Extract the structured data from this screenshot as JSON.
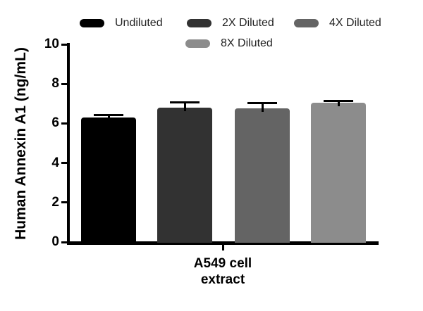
{
  "figure": {
    "background": "#ffffff",
    "text_color": "#000000"
  },
  "chart_data": {
    "type": "bar",
    "title": "",
    "categories": [
      "A549 cell extract"
    ],
    "xlabel_lines": [
      "A549 cell",
      "extract"
    ],
    "ylabel": "Human Annexin A1 (ng/mL)",
    "units": "ng/mL",
    "ylim": [
      0,
      10
    ],
    "yticks": [
      0,
      2,
      4,
      6,
      8,
      10
    ],
    "grid": false,
    "legend_position": "top",
    "error_bars": true,
    "error_color": "#000000",
    "series": [
      {
        "name": "Undiluted",
        "value": 6.3,
        "error": 0.13,
        "color": "#000000"
      },
      {
        "name": "2X Diluted",
        "value": 6.8,
        "error": 0.25,
        "color": "#323232"
      },
      {
        "name": "4X Diluted",
        "value": 6.75,
        "error": 0.27,
        "color": "#646464"
      },
      {
        "name": "8X Diluted",
        "value": 7.05,
        "error": 0.08,
        "color": "#8c8c8c"
      }
    ]
  }
}
